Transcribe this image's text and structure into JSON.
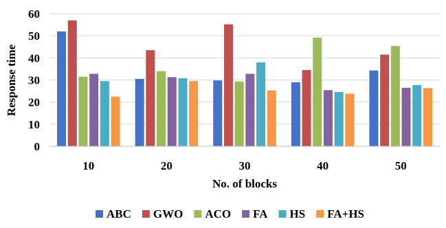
{
  "chart_data": {
    "type": "bar",
    "xlabel": "No. of blocks",
    "ylabel": "Response time",
    "ylim": [
      0,
      60
    ],
    "yticks": [
      0,
      10,
      20,
      30,
      40,
      50,
      60
    ],
    "grid": true,
    "legend_position": "bottom",
    "categories": [
      "10",
      "20",
      "30",
      "40",
      "50"
    ],
    "series": [
      {
        "name": "ABC",
        "color": "#4472C4",
        "values": [
          52.0,
          30.5,
          29.8,
          29.0,
          34.3
        ]
      },
      {
        "name": "GWO",
        "color": "#C0504D",
        "values": [
          57.0,
          43.5,
          55.2,
          34.5,
          41.5
        ]
      },
      {
        "name": "ACO",
        "color": "#9BBB59",
        "values": [
          31.5,
          34.0,
          29.3,
          49.2,
          45.4
        ]
      },
      {
        "name": "FA",
        "color": "#8064A2",
        "values": [
          32.8,
          31.3,
          32.8,
          25.4,
          26.5
        ]
      },
      {
        "name": "HS",
        "color": "#4BACC6",
        "values": [
          29.5,
          30.8,
          38.0,
          24.6,
          27.7
        ]
      },
      {
        "name": "FA+HS",
        "color": "#F79646",
        "values": [
          22.5,
          29.5,
          25.3,
          23.8,
          26.3
        ]
      }
    ]
  }
}
